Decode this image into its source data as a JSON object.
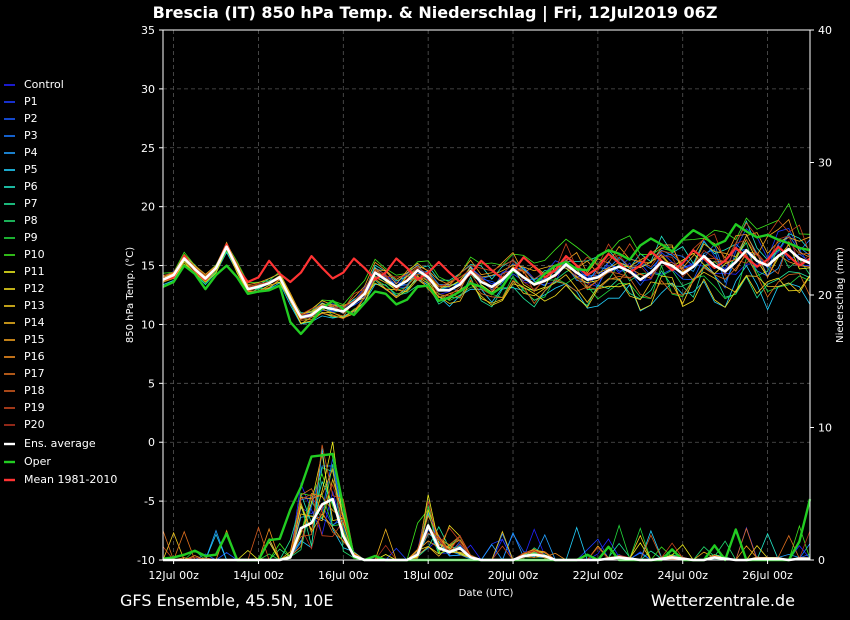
{
  "chart_data": {
    "type": "line",
    "title": "Brescia  (IT)  850 hPa Temp. & Niederschlag | Fri, 12Jul2019 06Z",
    "xlabel": "Date (UTC)",
    "ylabel_left": "850 hPa Temp. (°C)",
    "ylabel_right": "Niederschlag (mm)",
    "ylim_left": [
      -10,
      35
    ],
    "ylim_right": [
      0,
      40
    ],
    "yticks_left": [
      "35",
      "30",
      "25",
      "20",
      "15",
      "10",
      "5",
      "0",
      "-5",
      "-10"
    ],
    "yticks_right": [
      "40",
      "30",
      "20",
      "10",
      "0"
    ],
    "xticks": [
      "12Jul 00z",
      "14Jul 00z",
      "16Jul 00z",
      "18Jul 00z",
      "20Jul 00z",
      "22Jul 00z",
      "24Jul 00z",
      "26Jul 00z"
    ],
    "x_hours_range": [
      -6,
      360
    ],
    "grid": true,
    "legend_position": "left",
    "legend": [
      {
        "name": "Control",
        "color": "#2222ff"
      },
      {
        "name": "P1",
        "color": "#1d3cff"
      },
      {
        "name": "P2",
        "color": "#1a5aff"
      },
      {
        "name": "P3",
        "color": "#1a78ff"
      },
      {
        "name": "P4",
        "color": "#22a0ff"
      },
      {
        "name": "P5",
        "color": "#22d2ff"
      },
      {
        "name": "P6",
        "color": "#22e6c8"
      },
      {
        "name": "P7",
        "color": "#22e69a"
      },
      {
        "name": "P8",
        "color": "#22dc6e"
      },
      {
        "name": "P9",
        "color": "#22dc3c"
      },
      {
        "name": "P10",
        "color": "#3ce61e"
      },
      {
        "name": "P11",
        "color": "#f0f01e"
      },
      {
        "name": "P12",
        "color": "#f0dc1e"
      },
      {
        "name": "P13",
        "color": "#f0c81e"
      },
      {
        "name": "P14",
        "color": "#f0b41e"
      },
      {
        "name": "P15",
        "color": "#f0a01e"
      },
      {
        "name": "P16",
        "color": "#f08c1e"
      },
      {
        "name": "P17",
        "color": "#dc6e1e"
      },
      {
        "name": "P18",
        "color": "#d25a1e"
      },
      {
        "name": "P19",
        "color": "#c8461e"
      },
      {
        "name": "P20",
        "color": "#b4321e"
      },
      {
        "name": "Ens. average",
        "color": "#ffffff"
      },
      {
        "name": "Oper",
        "color": "#22cc22"
      },
      {
        "name": "Mean 1981-2010",
        "color": "#ff3333"
      }
    ],
    "x_hours": [
      -6,
      0,
      6,
      12,
      18,
      24,
      30,
      36,
      42,
      48,
      54,
      60,
      66,
      72,
      78,
      84,
      90,
      96,
      102,
      108,
      114,
      120,
      126,
      132,
      138,
      144,
      150,
      156,
      162,
      168,
      174,
      180,
      186,
      192,
      198,
      204,
      210,
      216,
      222,
      228,
      234,
      240,
      246,
      252,
      258,
      264,
      270,
      276,
      282,
      288,
      294,
      300,
      306,
      312,
      318,
      324,
      330,
      336,
      342,
      348,
      354,
      360
    ],
    "series": [
      {
        "name": "Ens. average",
        "temp": [
          13.8,
          14.2,
          15.6,
          14.7,
          13.9,
          14.8,
          16.6,
          14.8,
          13.0,
          13.2,
          13.5,
          14.0,
          12.2,
          10.6,
          10.8,
          11.5,
          11.3,
          11.1,
          11.8,
          12.6,
          14.4,
          13.8,
          13.2,
          13.7,
          14.6,
          14.0,
          12.9,
          12.9,
          13.4,
          14.5,
          13.6,
          13.2,
          13.8,
          14.7,
          14.0,
          13.4,
          13.7,
          14.2,
          15.1,
          14.4,
          13.8,
          14.0,
          14.6,
          14.9,
          14.5,
          13.8,
          14.4,
          15.3,
          15.0,
          14.3,
          14.9,
          15.8,
          15.0,
          14.5,
          15.3,
          16.3,
          15.4,
          15.0,
          15.8,
          16.4,
          15.6,
          15.2
        ],
        "precip": [
          0,
          0,
          0,
          0,
          0,
          0,
          0,
          0,
          0,
          0,
          0,
          0,
          0.2,
          2.4,
          2.8,
          4.2,
          4.6,
          1.8,
          0.3,
          0,
          0,
          0,
          0,
          0,
          0.4,
          2.6,
          0.9,
          0.6,
          0.9,
          0.2,
          0,
          0,
          0,
          0,
          0.3,
          0.4,
          0.3,
          0,
          0,
          0,
          0,
          0,
          0.1,
          0.2,
          0.1,
          0,
          0,
          0.1,
          0.2,
          0.1,
          0,
          0,
          0.2,
          0.1,
          0,
          0,
          0.1,
          0.1,
          0.1,
          0,
          0.1,
          0.1
        ]
      },
      {
        "name": "Oper",
        "temp": [
          13.2,
          13.6,
          15.0,
          14.3,
          13.0,
          14.2,
          15.0,
          14.0,
          12.6,
          12.8,
          12.9,
          13.3,
          10.2,
          9.2,
          10.2,
          11.4,
          12.0,
          11.3,
          10.8,
          11.8,
          12.8,
          12.6,
          11.7,
          12.1,
          13.2,
          13.3,
          12.0,
          12.3,
          12.8,
          13.5,
          13.2,
          12.6,
          13.2,
          14.6,
          14.0,
          13.4,
          14.3,
          15.0,
          15.3,
          14.7,
          14.6,
          15.8,
          16.3,
          16.0,
          15.5,
          16.7,
          17.3,
          16.8,
          16.2,
          17.2,
          18.0,
          17.5,
          16.7,
          17.1,
          18.5,
          17.9,
          17.4,
          17.6,
          17.2,
          16.9,
          16.5,
          16.3
        ],
        "precip": [
          0.1,
          0.2,
          0.4,
          0.7,
          0.3,
          0.4,
          2.0,
          0,
          0,
          0,
          1.5,
          1.6,
          3.8,
          5.5,
          7.8,
          7.9,
          8.0,
          4.0,
          0.2,
          0,
          0.3,
          0,
          0,
          0,
          0,
          0,
          0,
          0,
          0,
          0,
          0,
          0,
          0,
          0,
          0,
          0,
          0,
          0,
          0,
          0,
          0.4,
          0,
          1.0,
          0,
          0,
          0,
          0,
          0,
          0.8,
          0,
          0,
          0,
          1.1,
          0,
          2.3,
          0,
          0,
          0,
          0,
          0,
          1.4,
          4.6
        ]
      },
      {
        "name": "Mean 1981-2010",
        "temp": [
          13.8,
          14.0,
          15.8,
          14.6,
          13.8,
          14.8,
          16.8,
          14.8,
          13.6,
          14.0,
          15.4,
          14.3,
          13.6,
          14.4,
          15.8,
          14.8,
          13.9,
          14.4,
          15.6,
          14.8,
          13.8,
          14.4,
          15.6,
          14.8,
          13.8,
          14.4,
          15.3,
          14.4,
          13.6,
          14.3,
          15.4,
          14.6,
          13.9,
          14.5,
          15.7,
          14.9,
          14.0,
          14.6,
          15.8,
          15.0,
          14.2,
          14.8,
          16.0,
          15.2,
          14.4,
          15.0,
          16.2,
          15.4,
          14.6,
          15.2,
          16.3,
          15.6,
          14.8,
          15.4,
          16.5,
          15.7,
          14.9,
          15.5,
          16.6,
          15.8,
          15.0,
          15.6
        ]
      }
    ]
  },
  "footer": {
    "left": "GFS Ensemble, 45.5N, 10E",
    "right": "Wetterzentrale.de"
  }
}
